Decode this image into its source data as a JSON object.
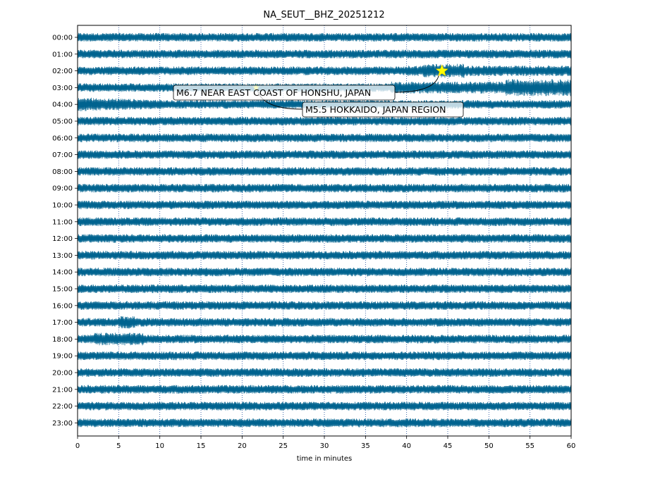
{
  "chart_data": {
    "type": "line",
    "title": "NA_SEUT__BHZ_20251212",
    "xlabel": "time in minutes",
    "ylabel": "",
    "xlim": [
      0,
      60
    ],
    "x_ticks": [
      "0",
      "5",
      "10",
      "15",
      "20",
      "25",
      "30",
      "35",
      "40",
      "45",
      "50",
      "55",
      "60"
    ],
    "y_tick_labels": [
      "00:00",
      "01:00",
      "02:00",
      "03:00",
      "04:00",
      "05:00",
      "06:00",
      "07:00",
      "08:00",
      "09:00",
      "10:00",
      "11:00",
      "12:00",
      "13:00",
      "14:00",
      "15:00",
      "16:00",
      "17:00",
      "18:00",
      "19:00",
      "20:00",
      "21:00",
      "22:00",
      "23:00"
    ],
    "trace_color": "#00638f",
    "grid": "vertical dotted lines every 5 minutes",
    "events": [
      {
        "label": "M6.7 NEAR EAST COAST OF HONSHU, JAPAN",
        "hour": 2,
        "minute": 44.3,
        "marker_color": "#ffff00"
      },
      {
        "label": "M5.5 HOKKAIDO, JAPAN REGION",
        "hour": 3,
        "minute": 21.7,
        "marker_color": "#ffff00"
      }
    ]
  }
}
